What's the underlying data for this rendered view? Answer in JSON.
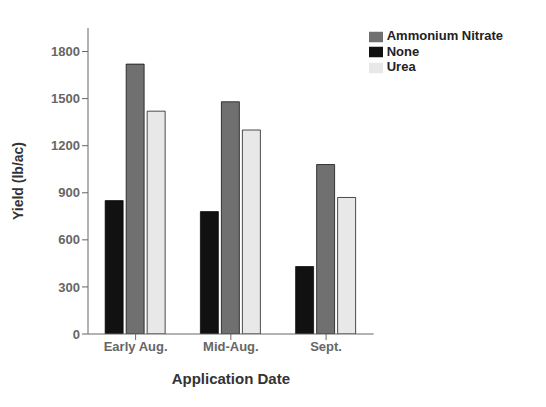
{
  "chart_data": {
    "type": "bar",
    "xlabel": "Application Date",
    "ylabel": "Yield (lb/ac)",
    "categories": [
      "Early Aug.",
      "Mid-Aug.",
      "Sept."
    ],
    "series": [
      {
        "name": "None",
        "color": "#111111",
        "values": [
          850,
          780,
          430
        ]
      },
      {
        "name": "Ammonium Nitrate",
        "color": "#707070",
        "values": [
          1720,
          1480,
          1080
        ]
      },
      {
        "name": "Urea",
        "color": "#e8e8e8",
        "values": [
          1420,
          1300,
          870
        ]
      }
    ],
    "ylim": [
      0,
      1950
    ],
    "yticks": [
      0,
      300,
      600,
      900,
      1200,
      1500,
      1800
    ],
    "legend": "upper right",
    "grid": false
  }
}
